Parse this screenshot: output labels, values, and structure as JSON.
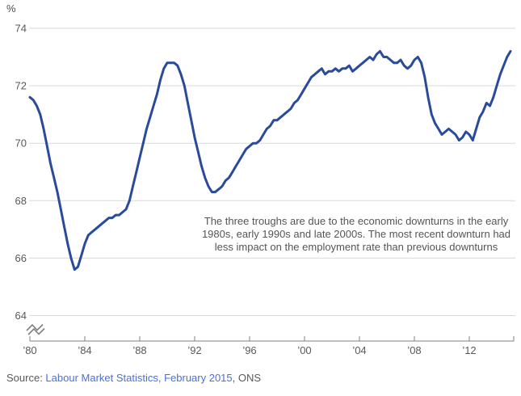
{
  "unit_label": "%",
  "chart_data": {
    "type": "line",
    "title": "",
    "ylabel": "%",
    "ylim": [
      64,
      74
    ],
    "yticks": [
      64,
      66,
      68,
      70,
      72,
      74
    ],
    "axis_break": true,
    "grid": "horizontal",
    "xticks": [
      {
        "year": 1980,
        "label": "’80"
      },
      {
        "year": 1984,
        "label": "’84"
      },
      {
        "year": 1988,
        "label": "’88"
      },
      {
        "year": 1992,
        "label": "’92"
      },
      {
        "year": 1996,
        "label": "’96"
      },
      {
        "year": 2000,
        "label": "’00"
      },
      {
        "year": 2004,
        "label": "’04"
      },
      {
        "year": 2008,
        "label": "’08"
      },
      {
        "year": 2012,
        "label": "’12"
      }
    ],
    "x_start": 1980,
    "x_step": 0.25,
    "series": [
      {
        "name": "Employment rate",
        "values": [
          71.6,
          71.5,
          71.3,
          71.0,
          70.5,
          69.9,
          69.3,
          68.8,
          68.3,
          67.7,
          67.1,
          66.5,
          66.0,
          65.6,
          65.7,
          66.1,
          66.5,
          66.8,
          66.9,
          67.0,
          67.1,
          67.2,
          67.3,
          67.4,
          67.4,
          67.5,
          67.5,
          67.6,
          67.7,
          68.0,
          68.5,
          69.0,
          69.5,
          70.0,
          70.5,
          70.9,
          71.3,
          71.7,
          72.2,
          72.6,
          72.8,
          72.8,
          72.8,
          72.7,
          72.4,
          72.0,
          71.4,
          70.8,
          70.2,
          69.7,
          69.2,
          68.8,
          68.5,
          68.3,
          68.3,
          68.4,
          68.5,
          68.7,
          68.8,
          69.0,
          69.2,
          69.4,
          69.6,
          69.8,
          69.9,
          70.0,
          70.0,
          70.1,
          70.3,
          70.5,
          70.6,
          70.8,
          70.8,
          70.9,
          71.0,
          71.1,
          71.2,
          71.4,
          71.5,
          71.7,
          71.9,
          72.1,
          72.3,
          72.4,
          72.5,
          72.6,
          72.4,
          72.5,
          72.5,
          72.6,
          72.5,
          72.6,
          72.6,
          72.7,
          72.5,
          72.6,
          72.7,
          72.8,
          72.9,
          73.0,
          72.9,
          73.1,
          73.2,
          73.0,
          73.0,
          72.9,
          72.8,
          72.8,
          72.9,
          72.7,
          72.6,
          72.7,
          72.9,
          73.0,
          72.8,
          72.3,
          71.6,
          71.0,
          70.7,
          70.5,
          70.3,
          70.4,
          70.5,
          70.4,
          70.3,
          70.1,
          70.2,
          70.4,
          70.3,
          70.1,
          70.5,
          70.9,
          71.1,
          71.4,
          71.3,
          71.6,
          72.0,
          72.4,
          72.7,
          73.0,
          73.2
        ]
      }
    ],
    "annotation": {
      "lines": [
        "The three troughs are due to the economic downturns in the early",
        "1980s, early 1990s and late 2000s. The most recent downturn had",
        "less impact on the employment rate than previous downturns"
      ]
    },
    "colors": {
      "line": "#2a4b9b",
      "gridline": "#d9d9d9",
      "axis": "#808080",
      "tick_text": "#595959",
      "annotation_text": "#555555"
    }
  },
  "source": {
    "prefix": "Source: ",
    "link_text": "Labour Market Statistics, February 2015",
    "suffix": ", ONS"
  }
}
